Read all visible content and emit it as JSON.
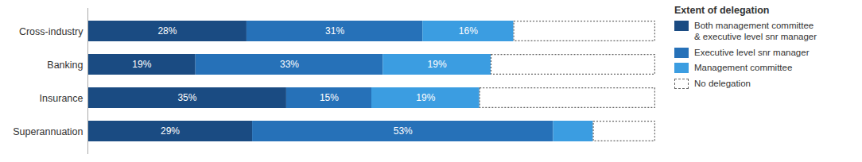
{
  "chart_data": {
    "type": "bar",
    "orientation": "horizontal",
    "stacked": true,
    "data_labels": true,
    "tick_labels": "y",
    "legend": "right",
    "legend_title": "Extent of delegation",
    "categories": [
      "Cross-industry",
      "Banking",
      "Insurance",
      "Superannuation"
    ],
    "xlim": [
      0,
      100
    ],
    "series": [
      {
        "name": "Both management committee\n& executive level snr manager",
        "color": "#1a4b82",
        "values": [
          28,
          19,
          35,
          29
        ],
        "value_labels": [
          "28%",
          "19%",
          "35%",
          "29%"
        ]
      },
      {
        "name": "Executive level snr manager",
        "color": "#2671b8",
        "values": [
          31,
          33,
          15,
          53
        ],
        "value_labels": [
          "31%",
          "33%",
          "15%",
          "53%"
        ]
      },
      {
        "name": "Management committee",
        "color": "#3b9de1",
        "values": [
          16,
          19,
          19,
          7
        ],
        "value_labels": [
          "16%",
          "19%",
          "19%",
          null
        ]
      },
      {
        "name": "No delegation",
        "color": "#666666",
        "line_style": "dashed",
        "values": [
          25,
          29,
          31,
          11
        ],
        "value_labels": [
          null,
          null,
          null,
          null
        ]
      }
    ]
  }
}
